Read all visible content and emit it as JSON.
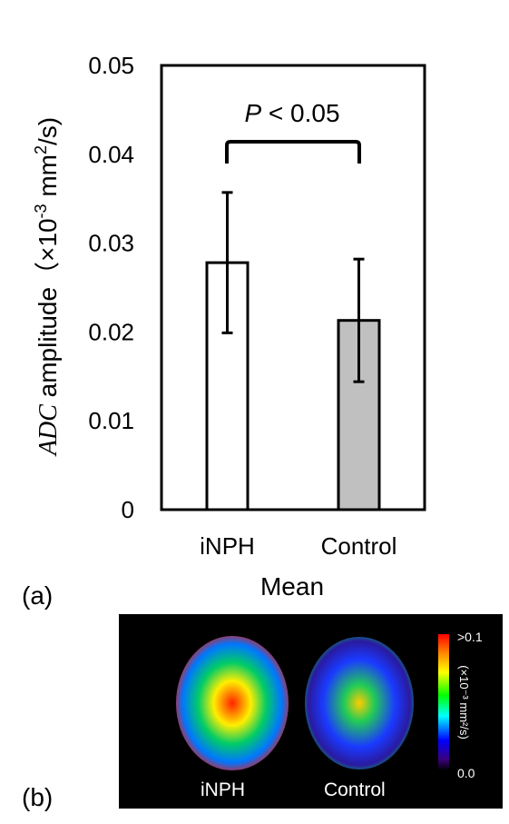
{
  "chart_data": {
    "type": "bar",
    "categories": [
      "iNPH",
      "Control"
    ],
    "values": [
      0.0278,
      0.0213
    ],
    "errors": [
      0.0079,
      0.0069
    ],
    "bar_colors": [
      "#ffffff",
      "#c0c0c0"
    ],
    "xlabel": "Mean",
    "ylabel": {
      "italic": "ADC",
      "text": " amplitude（×10",
      "exp1": "-3",
      "unit": " mm",
      "exp2": "2",
      "tail": "/s)"
    },
    "ylim": [
      0,
      0.05
    ],
    "yticks": [
      "0",
      "0.01",
      "0.02",
      "0.03",
      "0.04",
      "0.05"
    ],
    "annotation": {
      "italic": "P",
      "text": " < 0.05"
    },
    "grid": false
  },
  "panels": {
    "a": "(a)",
    "b": "(b)"
  },
  "brain_maps": {
    "labels": [
      "iNPH",
      "Control"
    ],
    "colorbar_max": ">0.1",
    "colorbar_min": "0.0",
    "colorbar_unit": "(×10⁻³ mm²/s)"
  }
}
